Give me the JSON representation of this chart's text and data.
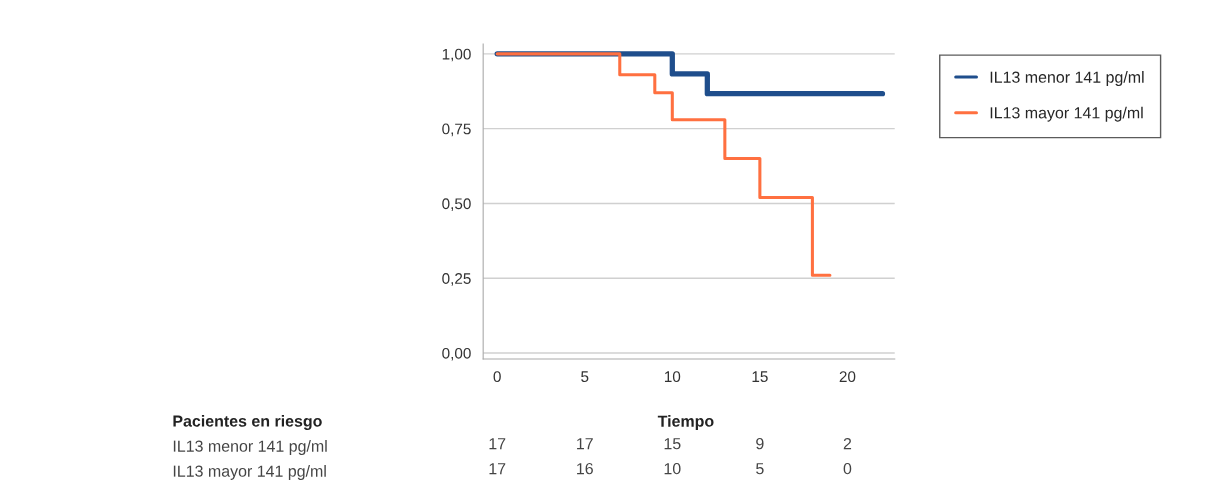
{
  "chart_data": {
    "type": "step",
    "xlim": [
      -0.8,
      22.7
    ],
    "xticks": [
      0,
      5,
      10,
      15,
      20
    ],
    "ylim": [
      -0.02,
      1.033
    ],
    "yticks": [
      {
        "value": 0,
        "label": "0,00"
      },
      {
        "value": 0.25,
        "label": "0,25"
      },
      {
        "value": 0.5,
        "label": "0,50"
      },
      {
        "value": 0.75,
        "label": "0,75"
      },
      {
        "value": 1,
        "label": "1,00"
      }
    ],
    "grid": "y",
    "legend": "top right",
    "line_style": "solid",
    "marker": "none",
    "series": [
      {
        "name": "IL13 menor 141 pg/ml",
        "color": "#1f4e8c",
        "x": [
          0,
          10,
          12,
          22
        ],
        "values": [
          1,
          0.933,
          0.867,
          0.867
        ]
      },
      {
        "name": "IL13 mayor 141 pg/ml",
        "color": "#ff7040",
        "x": [
          0,
          7,
          9,
          10,
          13,
          15,
          18,
          19
        ],
        "values": [
          1,
          0.93,
          0.87,
          0.78,
          0.65,
          0.52,
          0.26,
          0.26
        ]
      }
    ],
    "annotations": [
      "Pacientes en riesgo",
      "Tiempo",
      "IL13 menor 141 pg/ml",
      "17",
      "17",
      "15",
      "9",
      "2",
      "IL13 mayor 141 pg/ml",
      "17",
      "16",
      "10",
      "5",
      "0"
    ]
  }
}
